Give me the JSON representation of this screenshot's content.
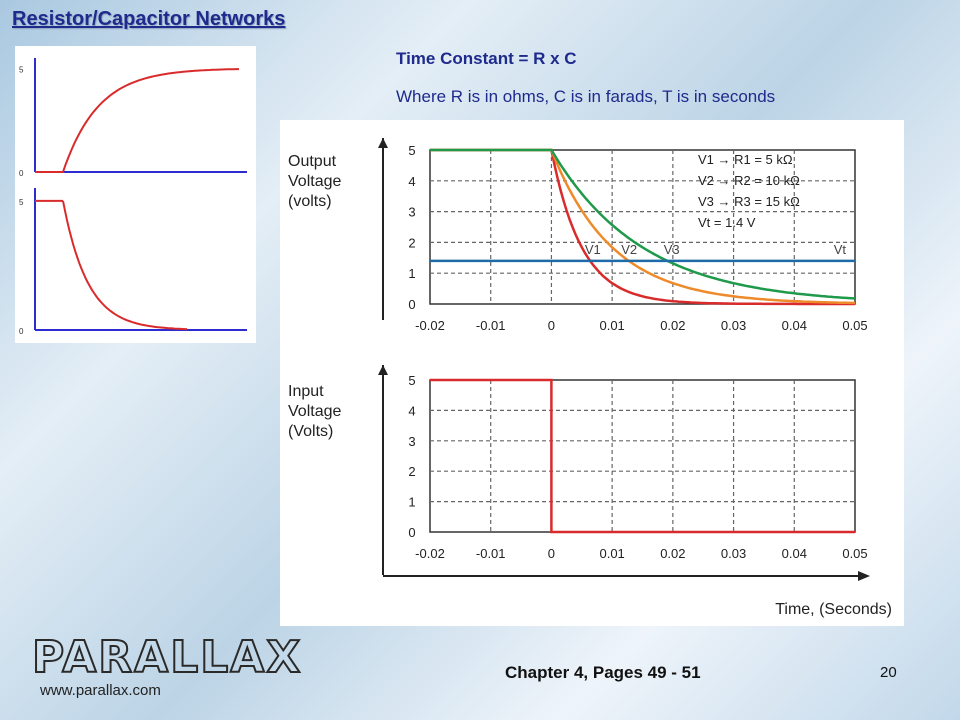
{
  "slide": {
    "title": "Resistor/Capacitor Networks",
    "time_constant_title": "Time Constant = R x C",
    "time_constant_note": "Where R is in ohms, C is in farads, T is in seconds",
    "chapter_ref": "Chapter 4, Pages 49 - 51",
    "page_number": "20"
  },
  "brand": {
    "logo_text": "PARALLAX",
    "url": "www.parallax.com",
    "logo_color": "#2a2a2a"
  },
  "colors": {
    "title": "#1e2a8c",
    "red": "#d92b2b",
    "orange": "#ef8a2a",
    "green": "#1f9a4a",
    "blue": "#1f6aa8",
    "axis_blue": "#2c2cd0"
  },
  "chart_data": [
    {
      "type": "line",
      "panel": "left-top",
      "description_text": "",
      "y_ticks": [
        "5",
        "0"
      ],
      "ylim": [
        0,
        5.5
      ],
      "series": [
        {
          "values": "rising exponential 0 to 5"
        }
      ]
    },
    {
      "type": "line",
      "panel": "left-bottom",
      "y_ticks": [
        "5",
        "0"
      ],
      "ylim": [
        0,
        5.5
      ],
      "series": [
        {
          "values": "flat 5 then decaying exponential to 0"
        }
      ]
    },
    {
      "type": "line",
      "panel": "output",
      "ylabel": [
        "Output",
        "Voltage",
        "(volts)"
      ],
      "xlim": [
        -0.02,
        0.05
      ],
      "ylim": [
        0,
        5
      ],
      "x_ticks": [
        "-0.02",
        "-0.01",
        "0",
        "0.01",
        "0.02",
        "0.03",
        "0.04",
        "0.05"
      ],
      "y_ticks": [
        "0",
        "1",
        "2",
        "3",
        "4",
        "5"
      ],
      "grid": true,
      "legend": [
        "V1 → R1 = 5 kΩ",
        "V2 → R2 = 10 kΩ",
        "V3 → R3 = 15 kΩ",
        "Vt = 1.4 V"
      ],
      "curve_labels": [
        "V1",
        "V2",
        "V3",
        "Vt"
      ],
      "threshold": 1.4,
      "series": [
        {
          "name": "V1",
          "color": "red",
          "tau": 0.005,
          "x": [
            -0.02,
            0,
            0.05
          ],
          "start": 5
        },
        {
          "name": "V2",
          "color": "orange",
          "tau": 0.01,
          "x": [
            -0.02,
            0,
            0.05
          ],
          "start": 5
        },
        {
          "name": "V3",
          "color": "green",
          "tau": 0.015,
          "x": [
            -0.02,
            0,
            0.05
          ],
          "start": 5
        },
        {
          "name": "Vt",
          "color": "blue",
          "x": [
            -0.02,
            0.05
          ],
          "values": [
            1.4,
            1.4
          ]
        }
      ]
    },
    {
      "type": "line",
      "panel": "input",
      "ylabel": [
        "Input",
        "Voltage",
        "(Volts)"
      ],
      "xlabel": "Time, (Seconds)",
      "xlim": [
        -0.02,
        0.05
      ],
      "ylim": [
        0,
        5
      ],
      "x_ticks": [
        "-0.02",
        "-0.01",
        "0",
        "0.01",
        "0.02",
        "0.03",
        "0.04",
        "0.05"
      ],
      "y_ticks": [
        "0",
        "1",
        "2",
        "3",
        "4",
        "5"
      ],
      "grid": true,
      "series": [
        {
          "name": "input",
          "color": "red",
          "x": [
            -0.02,
            0,
            0,
            0.05
          ],
          "values": [
            5,
            5,
            0,
            0
          ]
        }
      ]
    }
  ]
}
